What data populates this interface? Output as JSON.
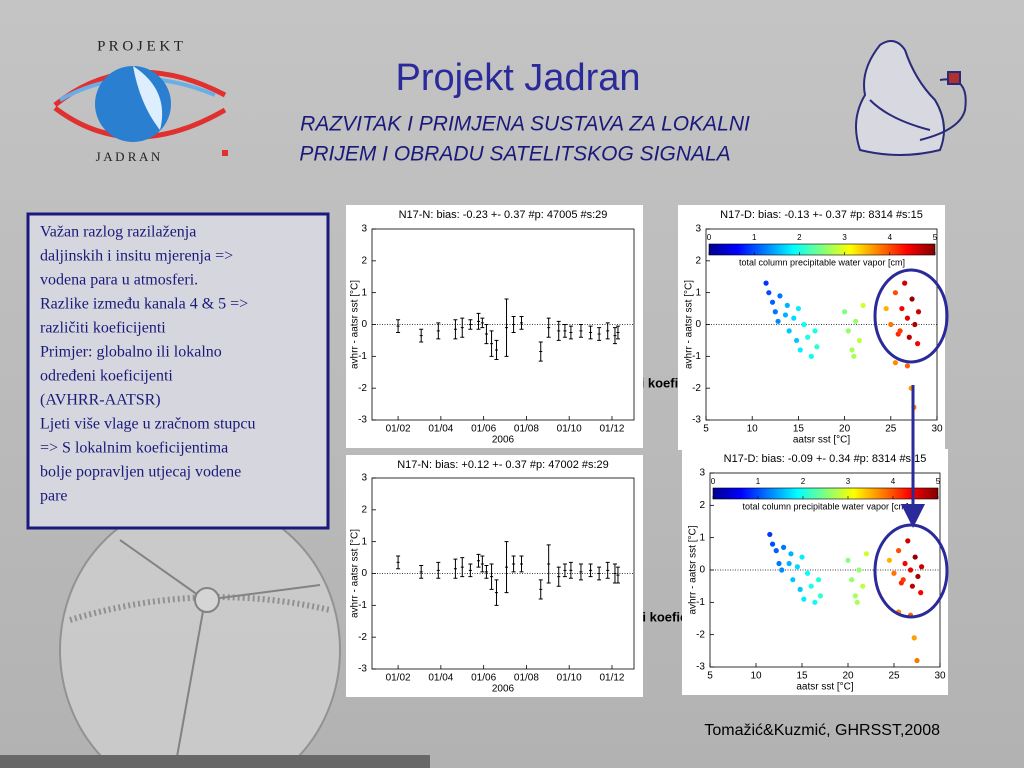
{
  "header": {
    "logo_top": "P R O J E K T",
    "logo_bottom": "J A D R A N",
    "title": "Projekt Jadran",
    "subtitle_lines": [
      "RAZVITAK I PRIMJENA SUSTAVA ZA LOKALNI",
      "PRIJEM I OBRADU SATELITSKOG SIGNALA"
    ]
  },
  "textbox": {
    "lines": [
      "Važan razlog razilaženja",
      "daljinskih i insitu mjerenja =>",
      "vodena para u atmosferi.",
      "Razlike između kanala 4 & 5 =>",
      "različiti koeficijenti",
      "Primjer: globalno ili lokalno",
      "određeni koeficijenti",
      "(AVHRR-AATSR)",
      "Ljeti više vlage u zračnom stupcu",
      "=> S lokalnim koeficijentima",
      "bolje popravljen utjecaj vodene",
      "pare"
    ]
  },
  "labels": {
    "global": "Globalni koeficijenti",
    "local": "Lokalni koeficijenti",
    "credit": "Tomažić&Kuzmić, GHRSST,2008"
  },
  "chart_data": [
    {
      "type": "errorbar",
      "title": "N17-N: bias: -0.23 +- 0.37 #p: 47005 #s:29",
      "xlabel": "2006",
      "ylabel": "avhrr - aatsr sst [°C]",
      "x": [
        2.0,
        3.08,
        3.88,
        4.68,
        5.0,
        5.38,
        5.76,
        5.94,
        6.13,
        6.37,
        6.6,
        7.07,
        7.4,
        7.77,
        8.67,
        9.04,
        9.51,
        9.8,
        10.08,
        10.55,
        11.0,
        11.4,
        11.8,
        12.14,
        12.28
      ],
      "values": [
        -0.05,
        -0.35,
        -0.2,
        -0.15,
        -0.1,
        0,
        0.1,
        0.05,
        -0.3,
        -0.6,
        -0.8,
        -0.1,
        0,
        0.05,
        -0.85,
        -0.1,
        -0.2,
        -0.2,
        -0.25,
        -0.2,
        -0.25,
        -0.3,
        -0.2,
        -0.35,
        -0.25
      ],
      "errors": [
        0.2,
        0.2,
        0.25,
        0.3,
        0.3,
        0.15,
        0.25,
        0.15,
        0.3,
        0.4,
        0.3,
        0.9,
        0.25,
        0.2,
        0.3,
        0.3,
        0.3,
        0.2,
        0.2,
        0.2,
        0.2,
        0.2,
        0.25,
        0.25,
        0.2
      ],
      "xlim": [
        0.78,
        13.03
      ],
      "ylim": [
        -3,
        3
      ],
      "xticks": [
        {
          "value": 2,
          "label": "01/02"
        },
        {
          "value": 4,
          "label": "01/04"
        },
        {
          "value": 6,
          "label": "01/06"
        },
        {
          "value": 8,
          "label": "01/08"
        },
        {
          "value": 10,
          "label": "01/10"
        },
        {
          "value": 12,
          "label": "01/12"
        }
      ],
      "yticks": [
        -3,
        -2,
        -1,
        0,
        1,
        2,
        3
      ],
      "color": "#000000"
    },
    {
      "type": "errorbar",
      "title": "N17-N: bias: +0.12 +- 0.37 #p: 47002 #s:29",
      "xlabel": "2006",
      "ylabel": "avhrr - aatsr sst [°C]",
      "x": [
        2.0,
        3.08,
        3.88,
        4.68,
        5.0,
        5.38,
        5.76,
        5.94,
        6.13,
        6.37,
        6.6,
        7.07,
        7.4,
        7.77,
        8.67,
        9.04,
        9.51,
        9.8,
        10.08,
        10.55,
        11.0,
        11.4,
        11.8,
        12.14,
        12.28
      ],
      "values": [
        0.35,
        0.05,
        0.1,
        0.15,
        0.2,
        0.1,
        0.4,
        0.3,
        0.05,
        -0.1,
        -0.6,
        0.2,
        0.3,
        0.3,
        -0.5,
        0.3,
        -0.1,
        0.1,
        0.1,
        0.05,
        0.1,
        0,
        0.1,
        0,
        -0.05
      ],
      "errors": [
        0.2,
        0.2,
        0.25,
        0.3,
        0.3,
        0.2,
        0.2,
        0.25,
        0.2,
        0.4,
        0.4,
        0.8,
        0.25,
        0.25,
        0.3,
        0.6,
        0.3,
        0.2,
        0.25,
        0.25,
        0.2,
        0.2,
        0.25,
        0.3,
        0.25
      ],
      "xlim": [
        0.78,
        13.03
      ],
      "ylim": [
        -3,
        3
      ],
      "xticks": [
        {
          "value": 2,
          "label": "01/02"
        },
        {
          "value": 4,
          "label": "01/04"
        },
        {
          "value": 6,
          "label": "01/06"
        },
        {
          "value": 8,
          "label": "01/08"
        },
        {
          "value": 10,
          "label": "01/10"
        },
        {
          "value": 12,
          "label": "01/12"
        }
      ],
      "yticks": [
        -3,
        -2,
        -1,
        0,
        1,
        2,
        3
      ],
      "color": "#000000"
    },
    {
      "type": "scatter",
      "title": "N17-D: bias: -0.13 +- 0.37 #p: 8314 #s:15",
      "xlabel": "aatsr sst [°C]",
      "ylabel": "avhrr - aatsr sst [°C]",
      "colorbar_label": "total column precipitable water vapor [cm]",
      "x": [
        11.5,
        11.8,
        12.2,
        12.5,
        12.8,
        13.0,
        13.6,
        14.0,
        14.5,
        14.8,
        15.2,
        15.6,
        16.0,
        16.4,
        16.8,
        17.0,
        15.0,
        13.8,
        20.0,
        20.4,
        20.8,
        21.2,
        21.6,
        22.0,
        21.0,
        24.5,
        25.0,
        25.5,
        25.8,
        26.2,
        26.5,
        26.8,
        27.0,
        27.3,
        27.6,
        27.9,
        26.0,
        28.0,
        26.8,
        27.2,
        27.5,
        25.5
      ],
      "values": [
        1.3,
        1.0,
        0.7,
        0.4,
        0.1,
        0.9,
        0.3,
        -0.2,
        0.2,
        -0.5,
        -0.8,
        0.0,
        -0.4,
        -1.0,
        -0.2,
        -0.7,
        0.5,
        0.6,
        0.4,
        -0.2,
        -0.8,
        0.1,
        -0.5,
        0.6,
        -1.0,
        0.5,
        0.0,
        1.0,
        -0.3,
        0.5,
        1.3,
        0.2,
        -0.4,
        0.8,
        0.0,
        -0.6,
        -0.2,
        0.4,
        -1.3,
        -2.0,
        -2.6,
        -1.2
      ],
      "vapor": [
        0.9,
        1.0,
        1.1,
        1.2,
        1.3,
        1.2,
        1.5,
        1.6,
        1.7,
        1.6,
        1.8,
        1.9,
        2.0,
        1.9,
        2.0,
        2.1,
        1.8,
        1.5,
        2.5,
        2.6,
        2.7,
        2.6,
        2.8,
        2.9,
        2.7,
        3.5,
        3.8,
        4.0,
        4.2,
        4.4,
        4.6,
        4.5,
        4.7,
        4.9,
        4.8,
        4.4,
        4.1,
        4.6,
        3.9,
        3.6,
        3.8,
        3.7
      ],
      "xlim": [
        5,
        30
      ],
      "ylim": [
        -3,
        3
      ],
      "xticks": [
        5,
        10,
        15,
        20,
        25,
        30
      ],
      "yticks": [
        -3,
        -2,
        -1,
        0,
        1,
        2,
        3
      ],
      "clim": [
        0,
        5
      ],
      "cticks": [
        0,
        1,
        2,
        3,
        4,
        5
      ]
    },
    {
      "type": "scatter",
      "title": "N17-D: bias: -0.09 +- 0.34 #p: 8314 #s:15",
      "xlabel": "aatsr sst [°C]",
      "ylabel": "avhrr - aatsr sst [°C]",
      "colorbar_label": "total column precipitable water vapor [cm]",
      "x": [
        11.5,
        11.8,
        12.2,
        12.5,
        12.8,
        13.0,
        13.6,
        14.0,
        14.5,
        14.8,
        15.2,
        15.6,
        16.0,
        16.4,
        16.8,
        17.0,
        15.0,
        13.8,
        20.0,
        20.4,
        20.8,
        21.2,
        21.6,
        22.0,
        21.0,
        24.5,
        25.0,
        25.5,
        25.8,
        26.2,
        26.5,
        26.8,
        27.0,
        27.3,
        27.6,
        27.9,
        26.0,
        28.0,
        26.8,
        27.2,
        27.5,
        25.5
      ],
      "values": [
        1.1,
        0.8,
        0.6,
        0.2,
        0.0,
        0.7,
        0.2,
        -0.3,
        0.1,
        -0.6,
        -0.9,
        -0.1,
        -0.5,
        -1.0,
        -0.3,
        -0.8,
        0.4,
        0.5,
        0.3,
        -0.3,
        -0.8,
        0.0,
        -0.5,
        0.5,
        -1.0,
        0.3,
        -0.1,
        0.6,
        -0.4,
        0.2,
        0.9,
        0.0,
        -0.5,
        0.4,
        -0.2,
        -0.7,
        -0.3,
        0.1,
        -1.4,
        -2.1,
        -2.8,
        -1.3
      ],
      "vapor": [
        0.9,
        1.0,
        1.1,
        1.2,
        1.3,
        1.2,
        1.5,
        1.6,
        1.7,
        1.6,
        1.8,
        1.9,
        2.0,
        1.9,
        2.0,
        2.1,
        1.8,
        1.5,
        2.5,
        2.6,
        2.7,
        2.6,
        2.8,
        2.9,
        2.7,
        3.5,
        3.8,
        4.0,
        4.2,
        4.4,
        4.6,
        4.5,
        4.7,
        4.9,
        4.8,
        4.4,
        4.1,
        4.6,
        3.9,
        3.6,
        3.8,
        3.7
      ],
      "xlim": [
        5,
        30
      ],
      "ylim": [
        -3,
        3
      ],
      "xticks": [
        5,
        10,
        15,
        20,
        25,
        30
      ],
      "yticks": [
        -3,
        -2,
        -1,
        0,
        1,
        2,
        3
      ],
      "clim": [
        0,
        5
      ],
      "cticks": [
        0,
        1,
        2,
        3,
        4,
        5
      ]
    }
  ]
}
